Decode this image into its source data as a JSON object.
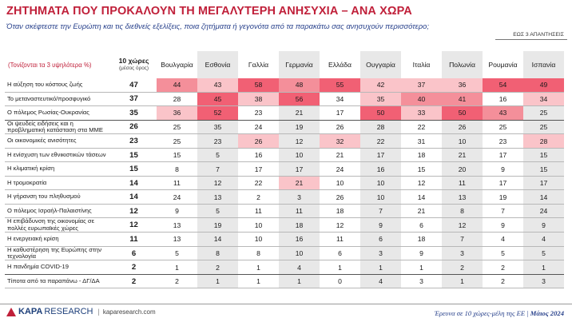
{
  "header": {
    "title": "ΖΗΤΗΜΑΤΑ ΠΟΥ ΠΡΟΚΑΛΟΥΝ ΤΗ ΜΕΓΑΛΥΤΕΡΗ ΑΝΗΣΥΧΙΑ – ΑΝΑ ΧΩΡΑ",
    "subtitle": "Όταν σκέφτεστε την Ευρώπη και τις διεθνείς εξελίξεις, ποια ζητήματα ή γεγονότα από τα παρακάτω σας ανησυχούν περισσότερο;",
    "up_to": "ΕΩΣ 3 ΑΠΑΝΤΗΣΕΙΣ"
  },
  "table": {
    "row_header": "(Τονίζονται τα 3 υψηλότερα %)",
    "total_header": "10 χώρες",
    "total_sub": "(μέσος όρος)",
    "countries": [
      "Βουλγαρία",
      "Εσθονία",
      "Γαλλία",
      "Γερμανία",
      "Ελλάδα",
      "Ουγγαρία",
      "Ιταλία",
      "Πολωνία",
      "Ρουμανία",
      "Ισπανία"
    ],
    "rows": [
      {
        "label": "Η αύξηση του κόστους ζωής",
        "total": "47",
        "values": [
          "44",
          "43",
          "58",
          "48",
          "55",
          "42",
          "37",
          "36",
          "54",
          "49"
        ],
        "heat": [
          2,
          1,
          3,
          2,
          3,
          1,
          1,
          1,
          3,
          3
        ]
      },
      {
        "label": "Το μεταναστευτικό/προσφυγικό",
        "total": "37",
        "values": [
          "28",
          "45",
          "38",
          "56",
          "34",
          "35",
          "40",
          "41",
          "16",
          "34"
        ],
        "heat": [
          0,
          3,
          1,
          3,
          0,
          1,
          2,
          2,
          0,
          1
        ]
      },
      {
        "label": "Ο πόλεμος Ρωσίας-Ουκρανίας",
        "total": "35",
        "values": [
          "36",
          "52",
          "23",
          "21",
          "17",
          "50",
          "33",
          "50",
          "43",
          "25"
        ],
        "heat": [
          1,
          3,
          0,
          0,
          0,
          3,
          1,
          3,
          2,
          0
        ]
      },
      {
        "label": "Οι ψευδείς ειδήσεις και η προβληματική κατάσταση στα ΜΜΕ",
        "total": "26",
        "values": [
          "25",
          "35",
          "24",
          "19",
          "26",
          "28",
          "22",
          "26",
          "25",
          "25"
        ],
        "heat": [
          0,
          0,
          0,
          0,
          0,
          0,
          0,
          0,
          0,
          0
        ]
      },
      {
        "label": "Οι οικονομικές ανισότητες",
        "total": "23",
        "values": [
          "25",
          "23",
          "26",
          "12",
          "32",
          "22",
          "31",
          "10",
          "23",
          "28"
        ],
        "heat": [
          0,
          0,
          1,
          0,
          1,
          0,
          0,
          0,
          0,
          1
        ]
      },
      {
        "label": "Η ενίσχυση των εθνικιστικών τάσεων",
        "total": "15",
        "values": [
          "15",
          "5",
          "16",
          "10",
          "21",
          "17",
          "18",
          "21",
          "17",
          "15"
        ],
        "heat": [
          0,
          0,
          0,
          0,
          0,
          0,
          0,
          0,
          0,
          0
        ]
      },
      {
        "label": "Η κλιματική κρίση",
        "total": "15",
        "values": [
          "8",
          "7",
          "17",
          "17",
          "24",
          "16",
          "15",
          "20",
          "9",
          "15"
        ],
        "heat": [
          0,
          0,
          0,
          0,
          0,
          0,
          0,
          0,
          0,
          0
        ]
      },
      {
        "label": "Η τρομοκρατία",
        "total": "14",
        "values": [
          "11",
          "12",
          "22",
          "21",
          "10",
          "10",
          "12",
          "11",
          "17",
          "17"
        ],
        "heat": [
          0,
          0,
          0,
          1,
          0,
          0,
          0,
          0,
          0,
          0
        ]
      },
      {
        "label": "Η γήρανση του πληθυσμού",
        "total": "14",
        "values": [
          "24",
          "13",
          "2",
          "3",
          "26",
          "10",
          "14",
          "13",
          "19",
          "14"
        ],
        "heat": [
          0,
          0,
          0,
          0,
          0,
          0,
          0,
          0,
          0,
          0
        ]
      },
      {
        "label": "Ο πόλεμος Ισραήλ-Παλαιστίνης",
        "total": "12",
        "values": [
          "9",
          "5",
          "11",
          "11",
          "18",
          "7",
          "21",
          "8",
          "7",
          "24"
        ],
        "heat": [
          0,
          0,
          0,
          0,
          0,
          0,
          0,
          0,
          0,
          0
        ]
      },
      {
        "label": "Η επιβάδυνση της οικονομίας σε πολλές ευρωπαϊκές χώρες",
        "total": "12",
        "values": [
          "13",
          "19",
          "10",
          "18",
          "12",
          "9",
          "6",
          "12",
          "9",
          "9"
        ],
        "heat": [
          0,
          0,
          0,
          0,
          0,
          0,
          0,
          0,
          0,
          0
        ]
      },
      {
        "label": "Η ενεργειακή κρίση",
        "total": "11",
        "values": [
          "13",
          "14",
          "10",
          "16",
          "11",
          "6",
          "18",
          "7",
          "4",
          "4"
        ],
        "heat": [
          0,
          0,
          0,
          0,
          0,
          0,
          0,
          0,
          0,
          0
        ]
      },
      {
        "label": "Η καθυστέρηση της Ευρώπης στην τεχνολογία",
        "total": "6",
        "values": [
          "5",
          "8",
          "8",
          "10",
          "6",
          "3",
          "9",
          "3",
          "5",
          "5"
        ],
        "heat": [
          0,
          0,
          0,
          0,
          0,
          0,
          0,
          0,
          0,
          0
        ]
      },
      {
        "label": "Η πανδημία COVID-19",
        "total": "2",
        "values": [
          "1",
          "2",
          "1",
          "4",
          "1",
          "1",
          "1",
          "2",
          "2",
          "1"
        ],
        "heat": [
          0,
          0,
          0,
          0,
          0,
          0,
          0,
          0,
          0,
          0
        ]
      },
      {
        "label": "Τίποτα από τα παραπάνω - ΔΓ/ΔΑ",
        "total": "2",
        "values": [
          "2",
          "1",
          "1",
          "1",
          "0",
          "4",
          "3",
          "1",
          "2",
          "3"
        ],
        "heat": [
          0,
          0,
          0,
          0,
          0,
          0,
          0,
          0,
          0,
          0
        ]
      }
    ]
  },
  "footer": {
    "brand_strong": "KAPA",
    "brand_light": "RESEARCH",
    "website": "kaparesearch.com",
    "survey_note": "Έρευνα σε 10 χώρες-μέλη της ΕΕ | ",
    "date": "Μάιος 2024"
  },
  "colors": {
    "title": "#c0203a",
    "subtitle": "#27408b",
    "heat_high": "#f16074",
    "heat_mid": "#f48f9a",
    "heat_low": "#fac4c9",
    "shade": "#e8e8e8"
  }
}
